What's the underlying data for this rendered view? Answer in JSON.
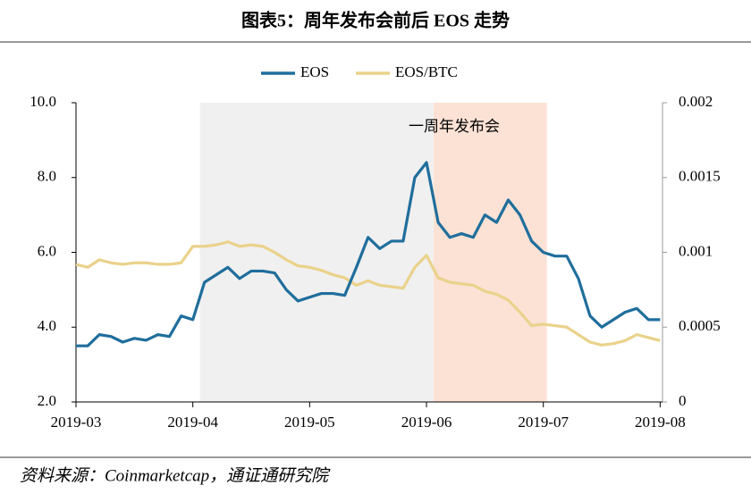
{
  "chart_data": {
    "type": "line",
    "title": "图表5：周年发布会前后 EOS 走势",
    "source": "资料来源：Coinmarketcap，通证通研究院",
    "annotation": "一周年发布会",
    "spans": [
      {
        "start": 1.06,
        "end": 3.06,
        "color": "#f0f0f0"
      },
      {
        "start": 3.06,
        "end": 4.03,
        "color": "#fbe2d5"
      }
    ],
    "x": [
      0,
      0.1,
      0.2,
      0.3,
      0.4,
      0.5,
      0.6,
      0.7,
      0.8,
      0.9,
      1.0,
      1.1,
      1.2,
      1.3,
      1.4,
      1.5,
      1.6,
      1.7,
      1.8,
      1.9,
      2.0,
      2.1,
      2.2,
      2.3,
      2.4,
      2.5,
      2.6,
      2.7,
      2.8,
      2.9,
      3.0,
      3.1,
      3.2,
      3.3,
      3.4,
      3.5,
      3.6,
      3.7,
      3.8,
      3.9,
      4.0,
      4.1,
      4.2,
      4.3,
      4.4,
      4.5,
      4.6,
      4.7,
      4.8,
      4.9,
      5.0
    ],
    "xlim": [
      0,
      5.02
    ],
    "xticks": [
      {
        "value": 0,
        "label": "2019-03"
      },
      {
        "value": 1,
        "label": "2019-04"
      },
      {
        "value": 2,
        "label": "2019-05"
      },
      {
        "value": 3,
        "label": "2019-06"
      },
      {
        "value": 4,
        "label": "2019-07"
      },
      {
        "value": 5,
        "label": "2019-08"
      }
    ],
    "ylim": [
      2,
      10
    ],
    "yticks": [
      {
        "value": 2,
        "label": "2.0"
      },
      {
        "value": 4,
        "label": "4.0"
      },
      {
        "value": 6,
        "label": "6.0"
      },
      {
        "value": 8,
        "label": "8.0"
      },
      {
        "value": 10,
        "label": "10.0"
      }
    ],
    "y2lim": [
      0,
      0.002
    ],
    "y2ticks": [
      0,
      0.0005,
      0.001,
      0.0015,
      0.002
    ],
    "legend": "top",
    "series": [
      {
        "name": "EOS",
        "color": "#1f6e9c",
        "values": [
          3.5,
          3.5,
          3.8,
          3.75,
          3.6,
          3.7,
          3.65,
          3.8,
          3.75,
          4.3,
          4.2,
          5.2,
          5.4,
          5.6,
          5.3,
          5.5,
          5.5,
          5.45,
          5.0,
          4.7,
          4.8,
          4.9,
          4.9,
          4.85,
          5.6,
          6.4,
          6.1,
          6.3,
          6.3,
          8.0,
          8.4,
          6.8,
          6.4,
          6.5,
          6.4,
          7.0,
          6.8,
          7.4,
          7.0,
          6.3,
          6.0,
          5.9,
          5.9,
          5.3,
          4.3,
          4.0,
          4.2,
          4.4,
          4.5,
          4.2,
          4.2
        ]
      },
      {
        "name": "EOS/BTC",
        "color": "#ead28a",
        "axis": "y2",
        "values": [
          0.00092,
          0.0009,
          0.00095,
          0.00093,
          0.00092,
          0.00093,
          0.00093,
          0.00092,
          0.00092,
          0.00093,
          0.00104,
          0.00104,
          0.00105,
          0.00107,
          0.00104,
          0.00105,
          0.00104,
          0.001,
          0.00095,
          0.00091,
          0.0009,
          0.00088,
          0.00085,
          0.00083,
          0.00078,
          0.00081,
          0.00078,
          0.00077,
          0.00076,
          0.0009,
          0.00098,
          0.00083,
          0.0008,
          0.00079,
          0.00078,
          0.00074,
          0.00072,
          0.00068,
          0.0006,
          0.00051,
          0.00052,
          0.00051,
          0.0005,
          0.00045,
          0.0004,
          0.00038,
          0.00039,
          0.00041,
          0.00045,
          0.00043,
          0.00041
        ]
      }
    ]
  }
}
